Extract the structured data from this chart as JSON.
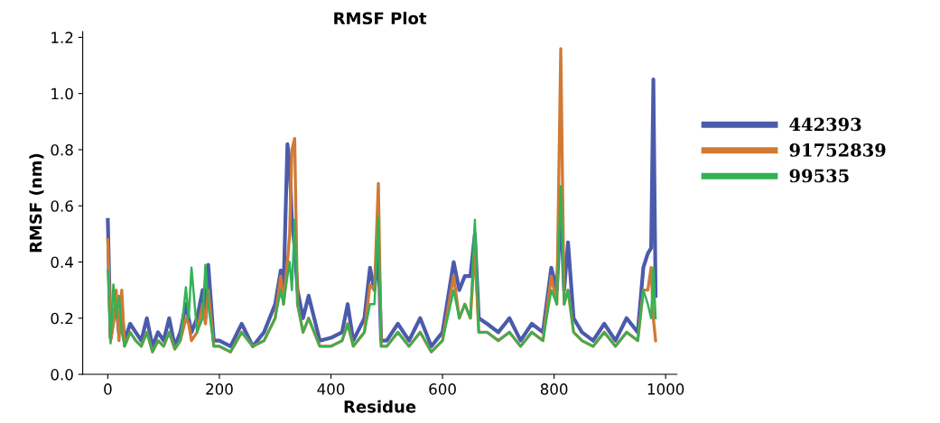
{
  "chart_data": {
    "type": "line",
    "title": "RMSF Plot",
    "xlabel": "Residue",
    "ylabel": "RMSF (nm)",
    "x": [
      0,
      5,
      10,
      15,
      20,
      25,
      30,
      40,
      50,
      60,
      70,
      80,
      90,
      100,
      110,
      120,
      130,
      140,
      145,
      150,
      160,
      170,
      175,
      180,
      190,
      200,
      220,
      240,
      260,
      280,
      300,
      310,
      315,
      322,
      326,
      330,
      335,
      340,
      350,
      360,
      380,
      400,
      420,
      430,
      440,
      460,
      470,
      478,
      485,
      490,
      500,
      520,
      540,
      560,
      580,
      600,
      620,
      630,
      640,
      650,
      658,
      665,
      680,
      700,
      720,
      740,
      760,
      780,
      795,
      805,
      812,
      818,
      825,
      835,
      850,
      870,
      890,
      910,
      930,
      950,
      960,
      968,
      974,
      978,
      982
    ],
    "series": [
      {
        "name": "442393",
        "color": "#4b5bab",
        "values": [
          0.55,
          0.13,
          0.2,
          0.25,
          0.15,
          0.22,
          0.12,
          0.18,
          0.15,
          0.12,
          0.2,
          0.1,
          0.15,
          0.12,
          0.2,
          0.1,
          0.15,
          0.25,
          0.2,
          0.15,
          0.2,
          0.3,
          0.2,
          0.39,
          0.12,
          0.12,
          0.1,
          0.18,
          0.1,
          0.15,
          0.25,
          0.37,
          0.3,
          0.82,
          0.75,
          0.55,
          0.45,
          0.3,
          0.2,
          0.28,
          0.12,
          0.13,
          0.15,
          0.25,
          0.12,
          0.2,
          0.38,
          0.3,
          0.45,
          0.12,
          0.12,
          0.18,
          0.12,
          0.2,
          0.1,
          0.15,
          0.4,
          0.3,
          0.35,
          0.35,
          0.5,
          0.2,
          0.18,
          0.15,
          0.2,
          0.12,
          0.18,
          0.15,
          0.38,
          0.3,
          0.6,
          0.3,
          0.47,
          0.2,
          0.15,
          0.12,
          0.18,
          0.12,
          0.2,
          0.15,
          0.38,
          0.43,
          0.45,
          1.05,
          0.28
        ]
      },
      {
        "name": "91752839",
        "color": "#d07a35",
        "values": [
          0.48,
          0.12,
          0.18,
          0.3,
          0.12,
          0.3,
          0.1,
          0.15,
          0.12,
          0.1,
          0.15,
          0.08,
          0.12,
          0.1,
          0.15,
          0.09,
          0.12,
          0.2,
          0.18,
          0.12,
          0.15,
          0.25,
          0.18,
          0.3,
          0.1,
          0.1,
          0.08,
          0.15,
          0.1,
          0.12,
          0.2,
          0.35,
          0.25,
          0.4,
          0.5,
          0.8,
          0.84,
          0.25,
          0.15,
          0.2,
          0.1,
          0.1,
          0.12,
          0.18,
          0.1,
          0.15,
          0.32,
          0.3,
          0.68,
          0.1,
          0.1,
          0.15,
          0.1,
          0.15,
          0.08,
          0.12,
          0.35,
          0.2,
          0.25,
          0.2,
          0.45,
          0.15,
          0.15,
          0.12,
          0.15,
          0.1,
          0.15,
          0.12,
          0.35,
          0.25,
          1.16,
          0.25,
          0.3,
          0.15,
          0.12,
          0.1,
          0.15,
          0.1,
          0.15,
          0.12,
          0.3,
          0.3,
          0.38,
          0.2,
          0.12
        ]
      },
      {
        "name": "99535",
        "color": "#33b255",
        "values": [
          0.37,
          0.11,
          0.32,
          0.2,
          0.28,
          0.15,
          0.1,
          0.15,
          0.12,
          0.1,
          0.15,
          0.08,
          0.12,
          0.1,
          0.15,
          0.09,
          0.12,
          0.31,
          0.2,
          0.38,
          0.15,
          0.2,
          0.39,
          0.25,
          0.1,
          0.1,
          0.08,
          0.15,
          0.1,
          0.12,
          0.2,
          0.3,
          0.25,
          0.35,
          0.4,
          0.3,
          0.55,
          0.25,
          0.15,
          0.2,
          0.1,
          0.1,
          0.12,
          0.18,
          0.1,
          0.15,
          0.25,
          0.25,
          0.56,
          0.1,
          0.1,
          0.15,
          0.1,
          0.15,
          0.08,
          0.12,
          0.3,
          0.2,
          0.25,
          0.2,
          0.55,
          0.15,
          0.15,
          0.12,
          0.15,
          0.1,
          0.15,
          0.12,
          0.3,
          0.25,
          0.67,
          0.25,
          0.3,
          0.15,
          0.12,
          0.1,
          0.15,
          0.1,
          0.15,
          0.12,
          0.3,
          0.25,
          0.2,
          0.38,
          0.2
        ]
      }
    ],
    "xlim": [
      -45,
      1020
    ],
    "xticks": [
      0,
      200,
      400,
      600,
      800,
      1000
    ],
    "ylim": [
      0,
      1.22
    ],
    "yticks": [
      {
        "value": 0,
        "label": "0.0"
      },
      {
        "value": 0.2,
        "label": "0.2"
      },
      {
        "value": 0.4,
        "label": "0.4"
      },
      {
        "value": 0.6,
        "label": "0.6"
      },
      {
        "value": 0.8,
        "label": "0.8"
      },
      {
        "value": 1.0,
        "label": "1.0"
      },
      {
        "value": 1.2,
        "label": "1.2"
      }
    ],
    "legend": "right",
    "grid": false
  }
}
